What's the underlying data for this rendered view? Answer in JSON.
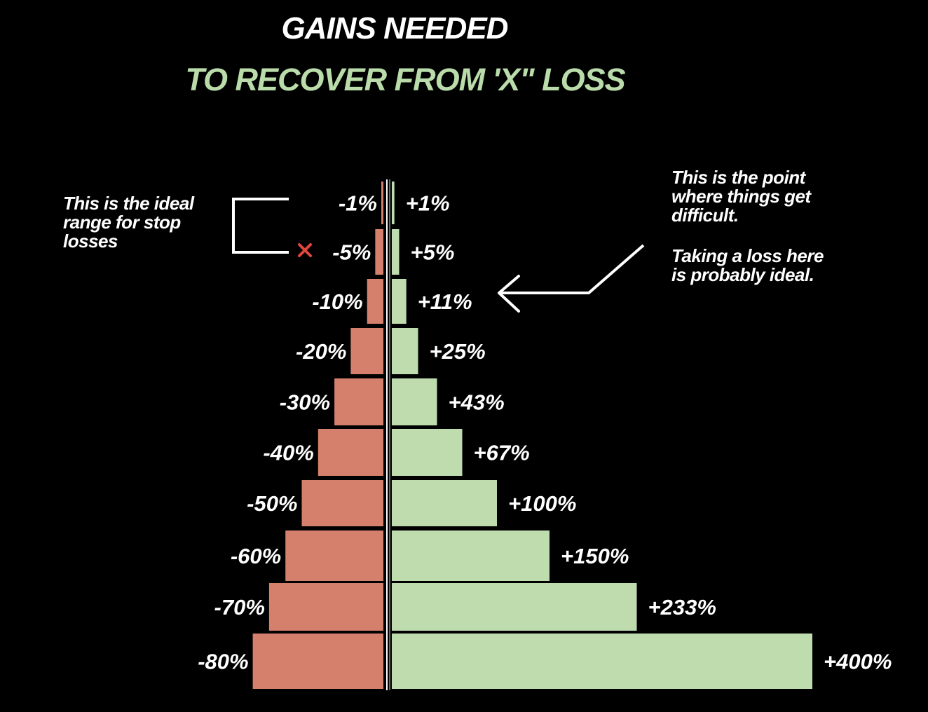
{
  "title": {
    "line1": "GAINS NEEDED",
    "line2": "TO RECOVER FROM 'X\" LOSS"
  },
  "annotations": {
    "left_note": "This is the ideal\nrange for stop\nlosses",
    "right_note_1": "This is the point\nwhere things get\ndifficult.",
    "right_note_2": "Taking a loss here\nis probably ideal."
  },
  "colors": {
    "background": "#000000",
    "loss": "#d4806c",
    "gain": "#bedcae",
    "title_primary": "#ffffff",
    "title_accent": "#b9dcaa",
    "marker": "#e0483c"
  },
  "chart_data": {
    "type": "bar",
    "orientation": "horizontal-diverging",
    "categories": [
      "-1%",
      "-5%",
      "-10%",
      "-20%",
      "-30%",
      "-40%",
      "-50%",
      "-60%",
      "-70%",
      "-80%"
    ],
    "series": [
      {
        "values": [
          -1,
          -5,
          -10,
          -20,
          -30,
          -40,
          -50,
          -60,
          -70,
          -80
        ],
        "labels": [
          "-1%",
          "-5%",
          "-10%",
          "-20%",
          "-30%",
          "-40%",
          "-50%",
          "-60%",
          "-70%",
          "-80%"
        ],
        "color": "#d4806c"
      },
      {
        "values": [
          1,
          5,
          11,
          25,
          43,
          67,
          100,
          150,
          233,
          400
        ],
        "labels": [
          "+1%",
          "+5%",
          "+11%",
          "+25%",
          "+43%",
          "+67%",
          "+100%",
          "+150%",
          "+233%",
          "+400%"
        ],
        "color": "#bedcae"
      }
    ],
    "marked_category": "-5%",
    "highlighted_category": "-10%"
  }
}
